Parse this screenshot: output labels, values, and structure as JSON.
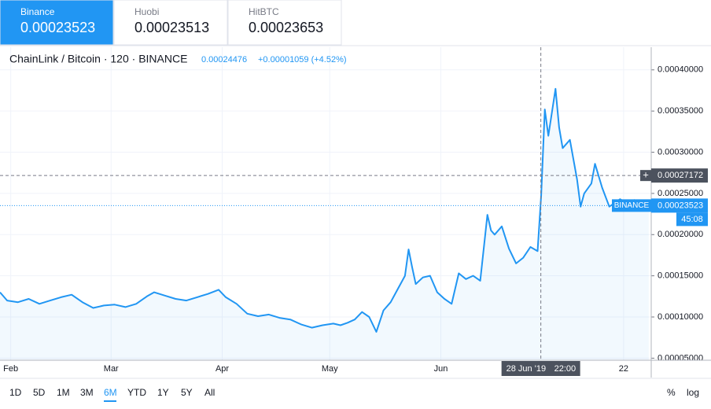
{
  "tabs": [
    {
      "exchange": "Binance",
      "price": "0.00023523"
    },
    {
      "exchange": "Huobi",
      "price": "0.00023513"
    },
    {
      "exchange": "HitBTC",
      "price": "0.00023653"
    }
  ],
  "selected_tab": 0,
  "chart_data": {
    "type": "line",
    "title": "ChainLink / Bitcoin · 120 · BINANCE",
    "quote": "0.00024476",
    "change": "+0.00001059 (+4.52%)",
    "x": [
      29,
      31,
      34,
      37,
      40,
      43,
      46,
      49,
      52,
      55,
      58,
      61,
      64,
      67,
      70,
      72,
      75,
      78,
      81,
      84,
      87,
      90,
      92,
      95,
      98,
      101,
      104,
      107,
      110,
      113,
      116,
      119,
      122,
      124,
      126,
      128,
      130,
      132,
      134,
      136,
      138,
      140,
      142,
      143,
      144,
      145,
      147,
      149,
      151,
      153,
      155,
      157,
      159,
      161,
      163,
      165,
      166,
      167,
      169,
      171,
      173,
      175,
      177,
      179,
      180,
      181,
      182,
      184,
      185,
      186,
      188,
      190,
      191,
      192,
      194,
      195,
      197,
      199,
      201,
      202,
      204,
      206,
      208,
      210
    ],
    "series": [
      {
        "name": "BINANCE",
        "color": "#2196f3",
        "values": [
          0.00013,
          0.00012,
          0.000118,
          0.000122,
          0.000116,
          0.00012,
          0.000124,
          0.000127,
          0.000118,
          0.000111,
          0.000114,
          0.000115,
          0.000112,
          0.000116,
          0.000125,
          0.00013,
          0.000126,
          0.000122,
          0.00012,
          0.000124,
          0.000128,
          0.000133,
          0.000124,
          0.000116,
          0.000104,
          0.000101,
          0.000103,
          9.9e-05,
          9.7e-05,
          9.1e-05,
          8.7e-05,
          9e-05,
          9.2e-05,
          9e-05,
          9.3e-05,
          9.7e-05,
          0.000106,
          0.0001,
          8.2e-05,
          0.000108,
          0.000118,
          0.000134,
          0.00015,
          0.000182,
          0.00016,
          0.00014,
          0.000148,
          0.00015,
          0.00013,
          0.000122,
          0.000116,
          0.000153,
          0.000146,
          0.00015,
          0.000144,
          0.000224,
          0.000205,
          0.0002,
          0.00021,
          0.000183,
          0.000165,
          0.000172,
          0.000185,
          0.00018,
          0.000248,
          0.000352,
          0.00032,
          0.000377,
          0.00033,
          0.000305,
          0.000315,
          0.000267,
          0.000234,
          0.00025,
          0.000262,
          0.000286,
          0.000257,
          0.000234,
          0.00024,
          0.000243,
          0.000238,
          0.000242,
          0.000236,
          0.00023523
        ]
      }
    ],
    "xlim": [
      29,
      210.7
    ],
    "xticks": [
      {
        "value": 32,
        "label": "Feb"
      },
      {
        "value": 60,
        "label": "Mar"
      },
      {
        "value": 91,
        "label": "Apr"
      },
      {
        "value": 121,
        "label": "May"
      },
      {
        "value": 152,
        "label": "Jun"
      },
      {
        "value": 203,
        "label": "22"
      }
    ],
    "ylim": [
      4.75e-05,
      0.0004275
    ],
    "yticks": [
      {
        "value": 5e-05,
        "label": "0.00005000"
      },
      {
        "value": 0.0001,
        "label": "0.00010000"
      },
      {
        "value": 0.00015,
        "label": "0.00015000"
      },
      {
        "value": 0.0002,
        "label": "0.00020000"
      },
      {
        "value": 0.00025,
        "label": "0.00025000"
      },
      {
        "value": 0.0003,
        "label": "0.00030000"
      },
      {
        "value": 0.00035,
        "label": "0.00035000"
      },
      {
        "value": 0.0004,
        "label": "0.00040000"
      }
    ],
    "grid": true,
    "crosshair": {
      "x": 179.9,
      "y": 0.00027172,
      "date_label": "28 Jun '19",
      "time_label": "22:00"
    },
    "countdown": "45:08"
  },
  "ranges": [
    "1D",
    "5D",
    "1M",
    "3M",
    "6M",
    "YTD",
    "1Y",
    "5Y",
    "All"
  ],
  "selected_range": 4,
  "scale_buttons": [
    "%",
    "log"
  ]
}
